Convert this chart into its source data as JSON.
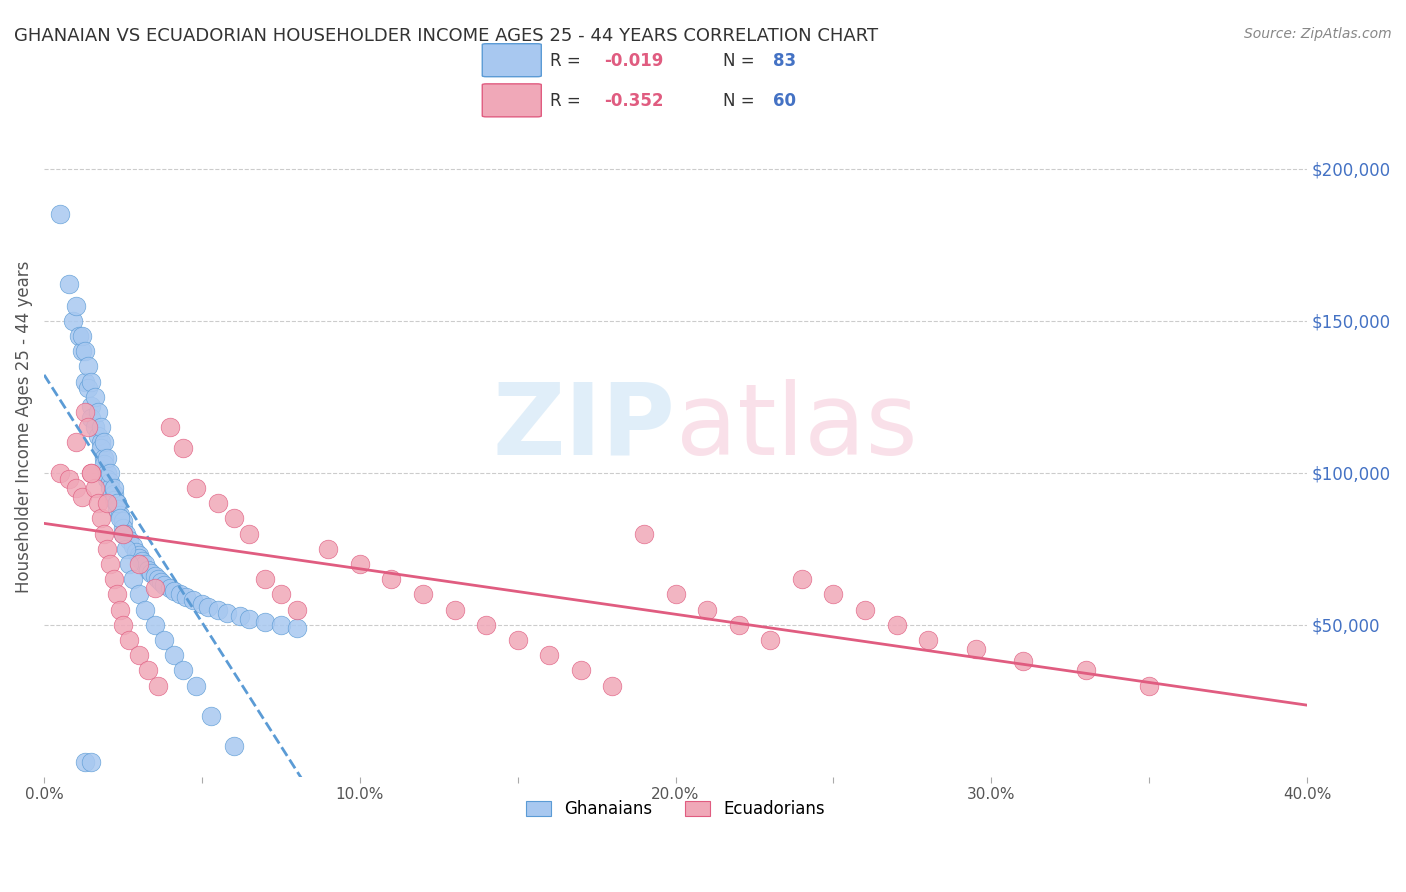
{
  "title": "GHANAIAN VS ECUADORIAN HOUSEHOLDER INCOME AGES 25 - 44 YEARS CORRELATION CHART",
  "source": "Source: ZipAtlas.com",
  "ylabel": "Householder Income Ages 25 - 44 years",
  "xlabel": "",
  "xlim": [
    0.0,
    0.4
  ],
  "ylim": [
    0,
    230000
  ],
  "xticks": [
    0.0,
    0.05,
    0.1,
    0.15,
    0.2,
    0.25,
    0.3,
    0.35,
    0.4
  ],
  "xticklabels": [
    "0.0%",
    "",
    "10.0%",
    "",
    "20.0%",
    "",
    "30.0%",
    "",
    "40.0%"
  ],
  "yticks_right": [
    50000,
    100000,
    150000,
    200000
  ],
  "ytick_labels_right": [
    "$50,000",
    "$100,000",
    "$150,000",
    "$200,000"
  ],
  "ghanaian_R": -0.019,
  "ghanaian_N": 83,
  "ecuadorian_R": -0.352,
  "ecuadorian_N": 60,
  "scatter_color_gh": "#a8c8f0",
  "scatter_color_ec": "#f0a8b8",
  "line_color_gh": "#5b9bd5",
  "line_color_ec": "#e05c80",
  "watermark": "ZIPatlas",
  "watermark_color_zip": "#a0c8e8",
  "watermark_color_atlas": "#e8a0b8",
  "legend_label_gh": "Ghanaians",
  "legend_label_ec": "Ecuadorians",
  "gh_x": [
    0.005,
    0.008,
    0.009,
    0.011,
    0.012,
    0.013,
    0.014,
    0.015,
    0.015,
    0.016,
    0.017,
    0.018,
    0.018,
    0.019,
    0.019,
    0.02,
    0.02,
    0.021,
    0.021,
    0.022,
    0.022,
    0.023,
    0.023,
    0.024,
    0.025,
    0.025,
    0.026,
    0.027,
    0.028,
    0.029,
    0.03,
    0.03,
    0.031,
    0.032,
    0.033,
    0.034,
    0.035,
    0.036,
    0.037,
    0.038,
    0.04,
    0.041,
    0.043,
    0.045,
    0.047,
    0.05,
    0.052,
    0.055,
    0.058,
    0.062,
    0.065,
    0.07,
    0.075,
    0.08,
    0.01,
    0.012,
    0.013,
    0.014,
    0.015,
    0.016,
    0.017,
    0.018,
    0.019,
    0.02,
    0.021,
    0.022,
    0.023,
    0.024,
    0.025,
    0.026,
    0.027,
    0.028,
    0.03,
    0.032,
    0.035,
    0.038,
    0.041,
    0.044,
    0.048,
    0.053,
    0.06,
    0.013,
    0.015
  ],
  "gh_y": [
    185000,
    162000,
    150000,
    145000,
    140000,
    130000,
    128000,
    122000,
    118000,
    115000,
    112000,
    110000,
    108000,
    105000,
    103000,
    100000,
    98000,
    97000,
    95000,
    93000,
    91000,
    90000,
    88000,
    86000,
    84000,
    82000,
    80000,
    78000,
    76000,
    74000,
    73000,
    72000,
    71000,
    70000,
    68000,
    67000,
    66000,
    65000,
    64000,
    63000,
    62000,
    61000,
    60000,
    59000,
    58000,
    57000,
    56000,
    55000,
    54000,
    53000,
    52000,
    51000,
    50000,
    49000,
    155000,
    145000,
    140000,
    135000,
    130000,
    125000,
    120000,
    115000,
    110000,
    105000,
    100000,
    95000,
    90000,
    85000,
    80000,
    75000,
    70000,
    65000,
    60000,
    55000,
    50000,
    45000,
    40000,
    35000,
    30000,
    20000,
    10000,
    5000,
    5000
  ],
  "ec_x": [
    0.005,
    0.008,
    0.01,
    0.012,
    0.013,
    0.014,
    0.015,
    0.016,
    0.017,
    0.018,
    0.019,
    0.02,
    0.021,
    0.022,
    0.023,
    0.024,
    0.025,
    0.027,
    0.03,
    0.033,
    0.036,
    0.04,
    0.044,
    0.048,
    0.055,
    0.06,
    0.065,
    0.07,
    0.075,
    0.08,
    0.09,
    0.1,
    0.11,
    0.12,
    0.13,
    0.14,
    0.15,
    0.16,
    0.17,
    0.18,
    0.19,
    0.2,
    0.21,
    0.22,
    0.23,
    0.24,
    0.25,
    0.26,
    0.27,
    0.28,
    0.295,
    0.31,
    0.33,
    0.35,
    0.01,
    0.015,
    0.02,
    0.025,
    0.03,
    0.035
  ],
  "ec_y": [
    100000,
    98000,
    95000,
    92000,
    120000,
    115000,
    100000,
    95000,
    90000,
    85000,
    80000,
    75000,
    70000,
    65000,
    60000,
    55000,
    50000,
    45000,
    40000,
    35000,
    30000,
    115000,
    108000,
    95000,
    90000,
    85000,
    80000,
    65000,
    60000,
    55000,
    75000,
    70000,
    65000,
    60000,
    55000,
    50000,
    45000,
    40000,
    35000,
    30000,
    80000,
    60000,
    55000,
    50000,
    45000,
    65000,
    60000,
    55000,
    50000,
    45000,
    42000,
    38000,
    35000,
    30000,
    110000,
    100000,
    90000,
    80000,
    70000,
    62000
  ]
}
